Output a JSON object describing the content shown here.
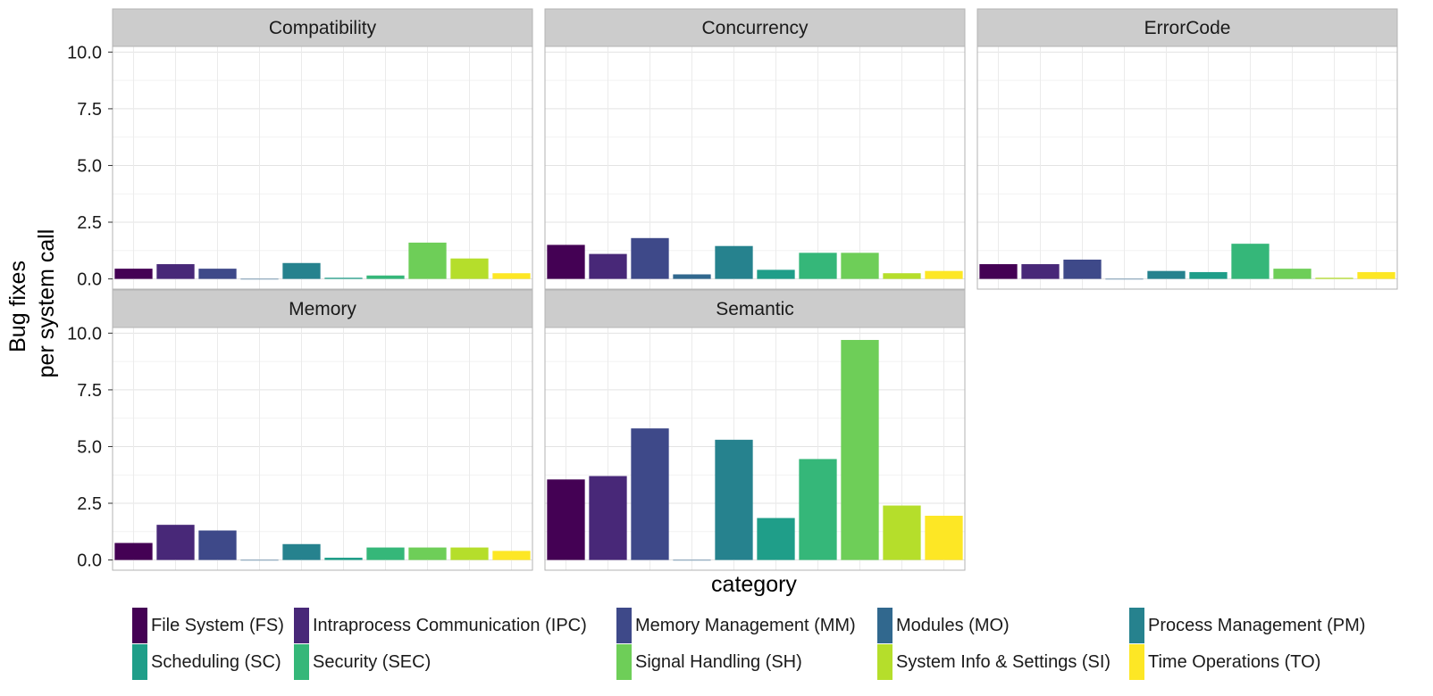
{
  "chart_data": {
    "type": "bar",
    "xlabel": "category",
    "ylabel_lines": [
      "Bug fixes",
      "per system call"
    ],
    "ylim": [
      0,
      10
    ],
    "yticks": [
      "0.0",
      "2.5",
      "5.0",
      "7.5",
      "10.0"
    ],
    "grid": true,
    "legend_position": "bottom",
    "categories": [
      {
        "label": "File System (FS)",
        "color": "#440154"
      },
      {
        "label": "Intraprocess Communication (IPC)",
        "color": "#482878"
      },
      {
        "label": "Memory Management (MM)",
        "color": "#3e4989"
      },
      {
        "label": "Modules (MO)",
        "color": "#31688e"
      },
      {
        "label": "Process Management (PM)",
        "color": "#26828e"
      },
      {
        "label": "Scheduling (SC)",
        "color": "#1f9e89"
      },
      {
        "label": "Security (SEC)",
        "color": "#35b779"
      },
      {
        "label": "Signal Handling (SH)",
        "color": "#6ece58"
      },
      {
        "label": "System Info & Settings (SI)",
        "color": "#b5de2b"
      },
      {
        "label": "Time Operations (TO)",
        "color": "#fde725"
      }
    ],
    "facets": [
      {
        "title": "Compatibility",
        "values": [
          0.45,
          0.65,
          0.45,
          0.0,
          0.7,
          0.05,
          0.15,
          1.6,
          0.9,
          0.25
        ]
      },
      {
        "title": "Concurrency",
        "values": [
          1.5,
          1.1,
          1.8,
          0.2,
          1.45,
          0.4,
          1.15,
          1.15,
          0.25,
          0.35
        ]
      },
      {
        "title": "ErrorCode",
        "values": [
          0.65,
          0.65,
          0.85,
          0.0,
          0.35,
          0.3,
          1.55,
          0.45,
          0.05,
          0.3
        ]
      },
      {
        "title": "Memory",
        "values": [
          0.75,
          1.55,
          1.3,
          0.0,
          0.7,
          0.1,
          0.55,
          0.55,
          0.55,
          0.4
        ]
      },
      {
        "title": "Semantic",
        "values": [
          3.55,
          3.7,
          5.8,
          0.0,
          5.3,
          1.85,
          4.45,
          9.7,
          2.4,
          1.95
        ]
      }
    ]
  }
}
